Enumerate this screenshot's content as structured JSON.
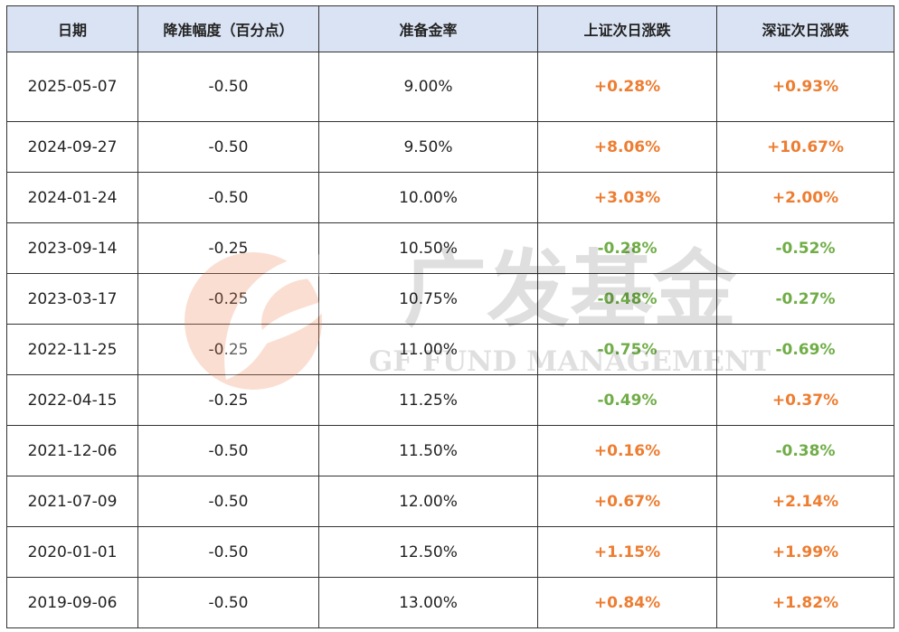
{
  "table": {
    "headers": [
      "日期",
      "降准幅度（百分点）",
      "准备金率",
      "上证次日涨跌",
      "深证次日涨跌"
    ],
    "rows": [
      [
        "2025-05-07",
        "-0.50",
        "9.00%",
        "+0.28%",
        "+0.93%"
      ],
      [
        "2024-09-27",
        "-0.50",
        "9.50%",
        "+8.06%",
        "+10.67%"
      ],
      [
        "2024-01-24",
        "-0.50",
        "10.00%",
        "+3.03%",
        "+2.00%"
      ],
      [
        "2023-09-14",
        "-0.25",
        "10.50%",
        "-0.28%",
        "-0.52%"
      ],
      [
        "2023-03-17",
        "-0.25",
        "10.75%",
        "-0.48%",
        "-0.27%"
      ],
      [
        "2022-11-25",
        "-0.25",
        "11.00%",
        "-0.75%",
        "-0.69%"
      ],
      [
        "2022-04-15",
        "-0.25",
        "11.25%",
        "-0.49%",
        "+0.37%"
      ],
      [
        "2021-12-06",
        "-0.50",
        "11.50%",
        "+0.16%",
        "-0.38%"
      ],
      [
        "2021-07-09",
        "-0.50",
        "12.00%",
        "+0.67%",
        "+2.14%"
      ],
      [
        "2020-01-01",
        "-0.50",
        "12.50%",
        "+1.15%",
        "+1.99%"
      ],
      [
        "2019-09-06",
        "-0.50",
        "13.00%",
        "+0.84%",
        "+1.82%"
      ]
    ]
  },
  "watermark": {
    "name": "广发基金",
    "english": "GF FUND MANAGEMENT"
  },
  "colors": {
    "up": "#ed7d31",
    "down": "#70ad47"
  }
}
